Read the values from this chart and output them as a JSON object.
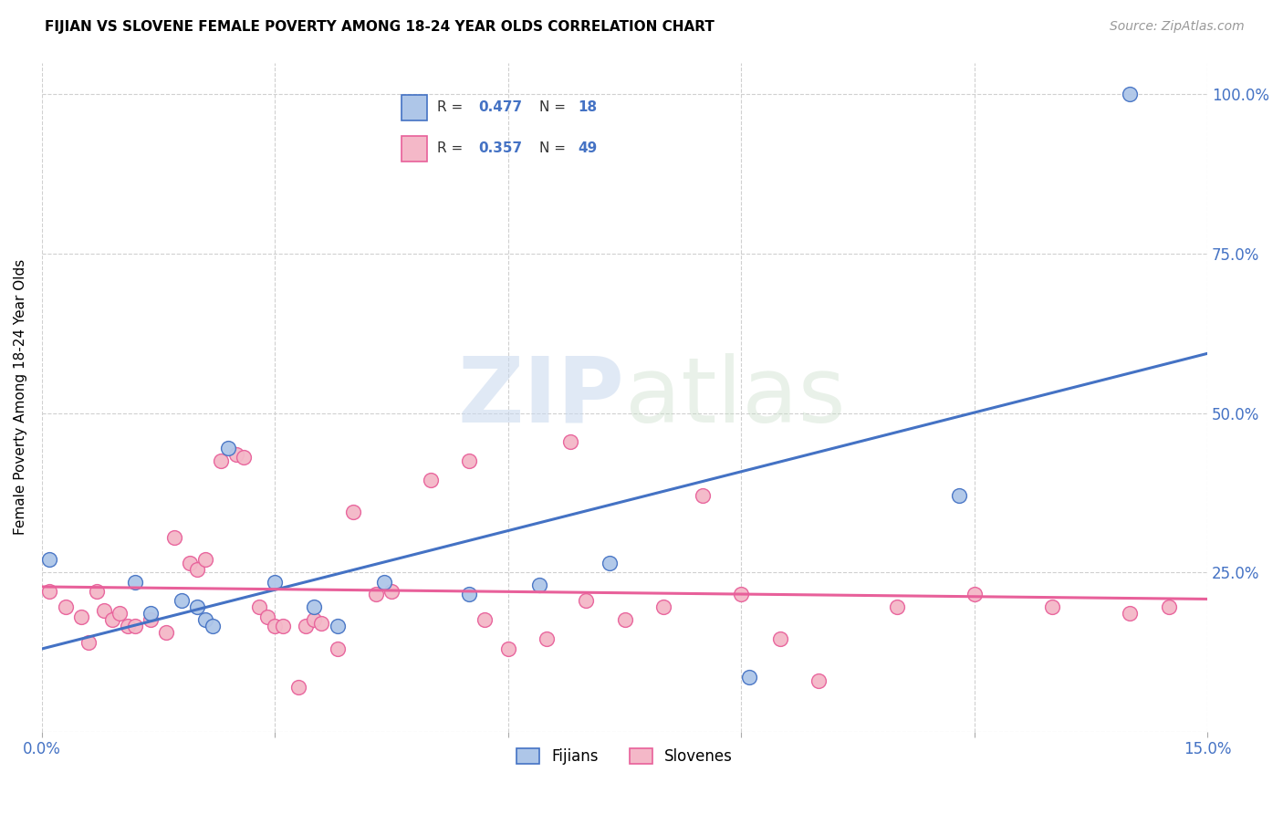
{
  "title": "FIJIAN VS SLOVENE FEMALE POVERTY AMONG 18-24 YEAR OLDS CORRELATION CHART",
  "source": "Source: ZipAtlas.com",
  "ylabel": "Female Poverty Among 18-24 Year Olds",
  "xlim": [
    0.0,
    0.15
  ],
  "ylim": [
    0.0,
    1.05
  ],
  "x_ticks": [
    0.0,
    0.03,
    0.06,
    0.09,
    0.12,
    0.15
  ],
  "x_tick_labels": [
    "0.0%",
    "",
    "",
    "",
    "",
    "15.0%"
  ],
  "y_ticks": [
    0.0,
    0.25,
    0.5,
    0.75,
    1.0
  ],
  "y_tick_labels": [
    "",
    "25.0%",
    "50.0%",
    "75.0%",
    "100.0%"
  ],
  "fijian_color": "#aec6e8",
  "slovene_color": "#f4b8c8",
  "fijian_line_color": "#4472c4",
  "slovene_line_color": "#e8609a",
  "fijian_R": 0.477,
  "fijian_N": 18,
  "slovene_R": 0.357,
  "slovene_N": 49,
  "legend_N_color": "#4472c4",
  "watermark_zip": "ZIP",
  "watermark_atlas": "atlas",
  "fijian_x": [
    0.001,
    0.012,
    0.014,
    0.018,
    0.02,
    0.021,
    0.022,
    0.024,
    0.03,
    0.035,
    0.038,
    0.044,
    0.055,
    0.064,
    0.073,
    0.091,
    0.118,
    0.14
  ],
  "fijian_y": [
    0.27,
    0.235,
    0.185,
    0.205,
    0.195,
    0.175,
    0.165,
    0.445,
    0.235,
    0.195,
    0.165,
    0.235,
    0.215,
    0.23,
    0.265,
    0.085,
    0.37,
    1.0
  ],
  "slovene_x": [
    0.001,
    0.003,
    0.005,
    0.006,
    0.007,
    0.008,
    0.009,
    0.01,
    0.011,
    0.012,
    0.014,
    0.016,
    0.017,
    0.019,
    0.02,
    0.021,
    0.023,
    0.025,
    0.026,
    0.028,
    0.029,
    0.03,
    0.031,
    0.033,
    0.034,
    0.035,
    0.036,
    0.038,
    0.04,
    0.043,
    0.045,
    0.05,
    0.055,
    0.057,
    0.06,
    0.065,
    0.068,
    0.07,
    0.075,
    0.08,
    0.085,
    0.09,
    0.095,
    0.1,
    0.11,
    0.12,
    0.13,
    0.14,
    0.145
  ],
  "slovene_y": [
    0.22,
    0.195,
    0.18,
    0.14,
    0.22,
    0.19,
    0.175,
    0.185,
    0.165,
    0.165,
    0.175,
    0.155,
    0.305,
    0.265,
    0.255,
    0.27,
    0.425,
    0.435,
    0.43,
    0.195,
    0.18,
    0.165,
    0.165,
    0.07,
    0.165,
    0.175,
    0.17,
    0.13,
    0.345,
    0.215,
    0.22,
    0.395,
    0.425,
    0.175,
    0.13,
    0.145,
    0.455,
    0.205,
    0.175,
    0.195,
    0.37,
    0.215,
    0.145,
    0.08,
    0.195,
    0.215,
    0.195,
    0.185,
    0.195
  ]
}
